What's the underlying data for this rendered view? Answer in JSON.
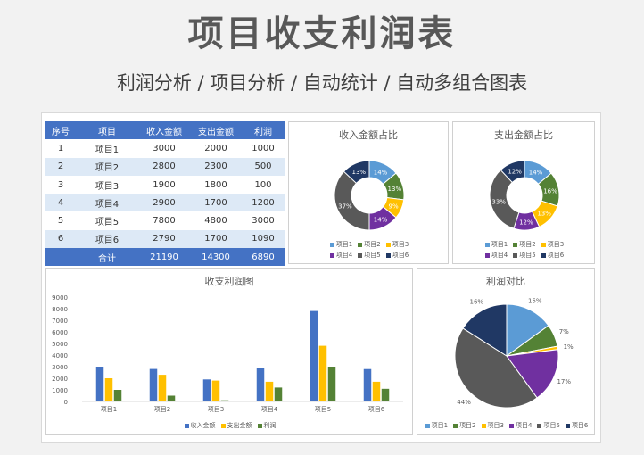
{
  "title": "项目收支利润表",
  "subtitle": "利润分析 / 项目分析 / 自动统计 / 自动多组合图表",
  "table": {
    "headers": [
      "序号",
      "项目",
      "收入金额",
      "支出金额",
      "利润"
    ],
    "rows": [
      [
        "1",
        "项目1",
        "3000",
        "2000",
        "1000"
      ],
      [
        "2",
        "项目2",
        "2800",
        "2300",
        "500"
      ],
      [
        "3",
        "项目3",
        "1900",
        "1800",
        "100"
      ],
      [
        "4",
        "项目4",
        "2900",
        "1700",
        "1200"
      ],
      [
        "5",
        "项目5",
        "7800",
        "4800",
        "3000"
      ],
      [
        "6",
        "项目6",
        "2790",
        "1700",
        "1090"
      ]
    ],
    "total": [
      "",
      "合计",
      "21190",
      "14300",
      "6890"
    ]
  },
  "colors": {
    "header": "#4472c4",
    "series": [
      "#5b9bd5",
      "#548235",
      "#ffc000",
      "#7030a0",
      "#595959",
      "#203864"
    ],
    "bars": [
      "#4472c4",
      "#ffc000",
      "#548235"
    ]
  },
  "chart_data": [
    {
      "type": "pie",
      "title": "收入金额占比",
      "labels": [
        "项目1",
        "项目2",
        "项目3",
        "项目4",
        "项目5",
        "项目6"
      ],
      "values": [
        14,
        13,
        9,
        14,
        37,
        13
      ],
      "unit": "%",
      "legend": "bottom"
    },
    {
      "type": "pie",
      "title": "支出金额占比",
      "labels": [
        "项目1",
        "项目2",
        "项目3",
        "项目4",
        "项目5",
        "项目6"
      ],
      "values": [
        14,
        16,
        13,
        12,
        33,
        12
      ],
      "unit": "%",
      "legend": "bottom"
    },
    {
      "type": "bar",
      "title": "收支利润图",
      "categories": [
        "项目1",
        "项目2",
        "项目3",
        "项目4",
        "项目5",
        "项目6"
      ],
      "series": [
        {
          "name": "收入金额",
          "values": [
            3000,
            2800,
            1900,
            2900,
            7800,
            2790
          ]
        },
        {
          "name": "支出金额",
          "values": [
            2000,
            2300,
            1800,
            1700,
            4800,
            1700
          ]
        },
        {
          "name": "利润",
          "values": [
            1000,
            500,
            100,
            1200,
            3000,
            1090
          ]
        }
      ],
      "yticks": [
        "0",
        "1000",
        "2000",
        "3000",
        "4000",
        "5000",
        "6000",
        "7000",
        "8000",
        "9000"
      ],
      "ylim": [
        0,
        9000
      ],
      "legend": "bottom"
    },
    {
      "type": "pie",
      "title": "利润对比",
      "labels": [
        "项目1",
        "项目2",
        "项目3",
        "项目4",
        "项目5",
        "项目6"
      ],
      "values": [
        15,
        7,
        1,
        17,
        44,
        16
      ],
      "unit": "%",
      "legend": "bottom"
    }
  ]
}
